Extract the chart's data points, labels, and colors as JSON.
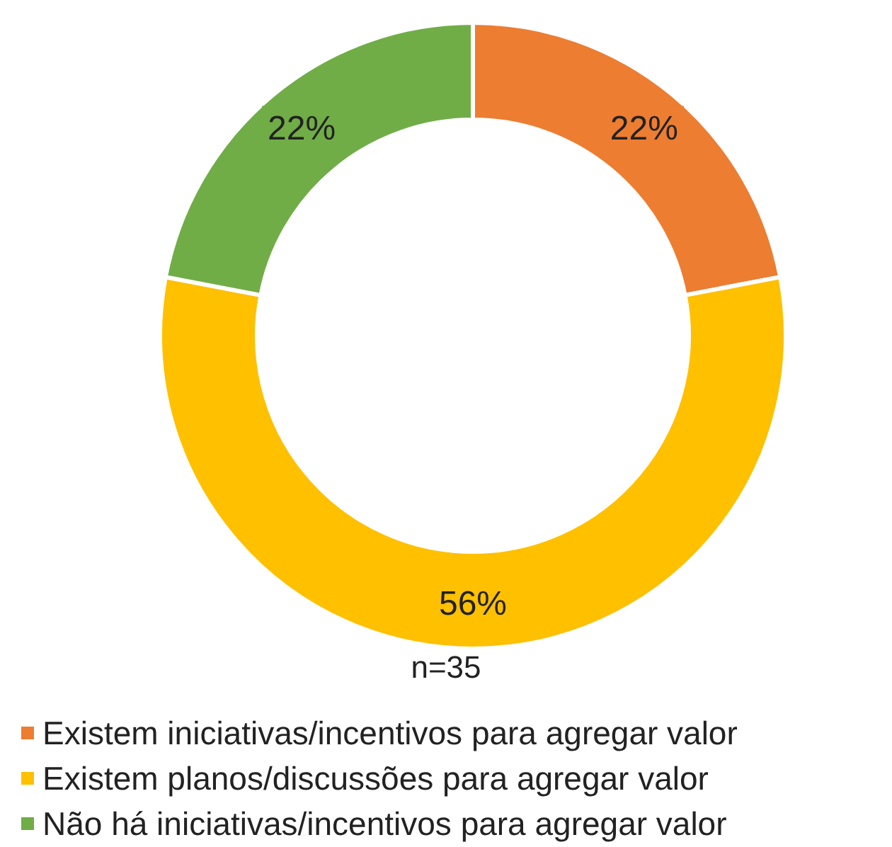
{
  "chart_data": {
    "type": "donut",
    "categories": [
      "Existem iniciativas/incentivos para agregar valor",
      "Existem planos/discussões para agregar valor",
      "Não há iniciativas/incentivos para agregar valor"
    ],
    "values": [
      22,
      56,
      22
    ],
    "colors": [
      "#ed7d31",
      "#ffc000",
      "#70ad47"
    ],
    "value_labels": [
      "22%",
      "56%",
      "22%"
    ],
    "annotations": [
      "n=35"
    ],
    "legend": "bottom"
  }
}
